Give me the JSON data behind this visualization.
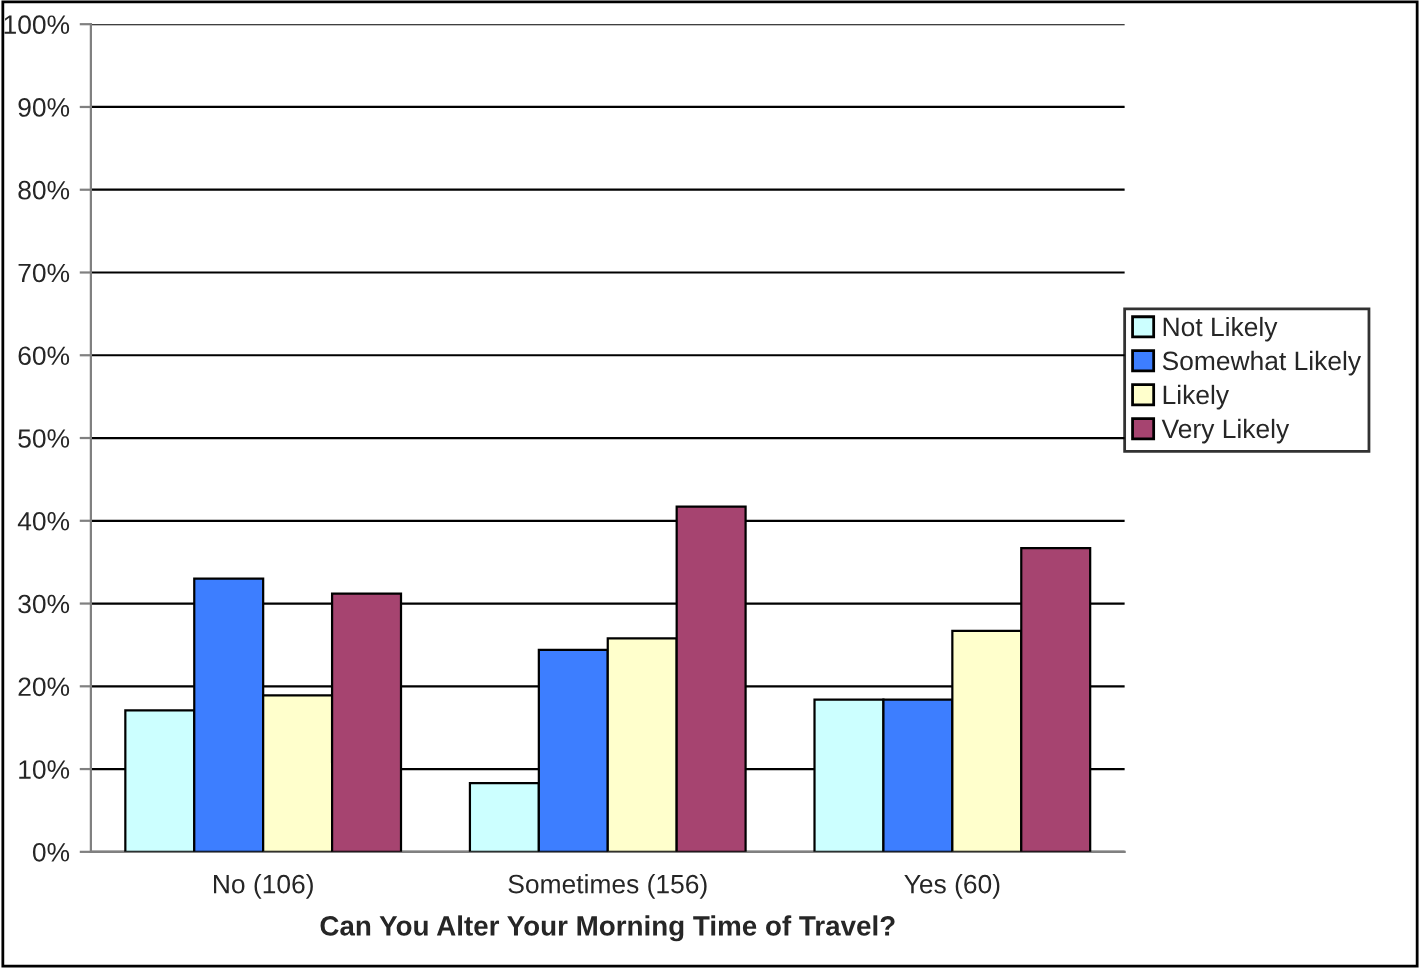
{
  "chart_data": {
    "type": "bar",
    "xlabel": "Can You Alter Your Morning Time of Travel?",
    "categories": [
      "No (106)",
      "Sometimes (156)",
      "Yes (60)"
    ],
    "series": [
      {
        "name": "Not Likely",
        "color": "#ccffff",
        "values": [
          17.1,
          8.3,
          18.4
        ]
      },
      {
        "name": "Somewhat Likely",
        "color": "#3d7eff",
        "values": [
          33.0,
          24.4,
          18.4
        ]
      },
      {
        "name": "Likely",
        "color": "#ffffcc",
        "values": [
          18.9,
          25.8,
          26.7
        ]
      },
      {
        "name": "Very Likely",
        "color": "#a64470",
        "values": [
          31.2,
          41.7,
          36.7
        ]
      }
    ],
    "ylim": [
      0,
      100
    ],
    "yticks": [
      {
        "value": 0,
        "label": "0%"
      },
      {
        "value": 10,
        "label": "10%"
      },
      {
        "value": 20,
        "label": "20%"
      },
      {
        "value": 30,
        "label": "30%"
      },
      {
        "value": 40,
        "label": "40%"
      },
      {
        "value": 50,
        "label": "50%"
      },
      {
        "value": 60,
        "label": "60%"
      },
      {
        "value": 70,
        "label": "70%"
      },
      {
        "value": 80,
        "label": "80%"
      },
      {
        "value": 90,
        "label": "90%"
      },
      {
        "value": 100,
        "label": "100%"
      }
    ],
    "grid": "y",
    "legend": "right"
  }
}
